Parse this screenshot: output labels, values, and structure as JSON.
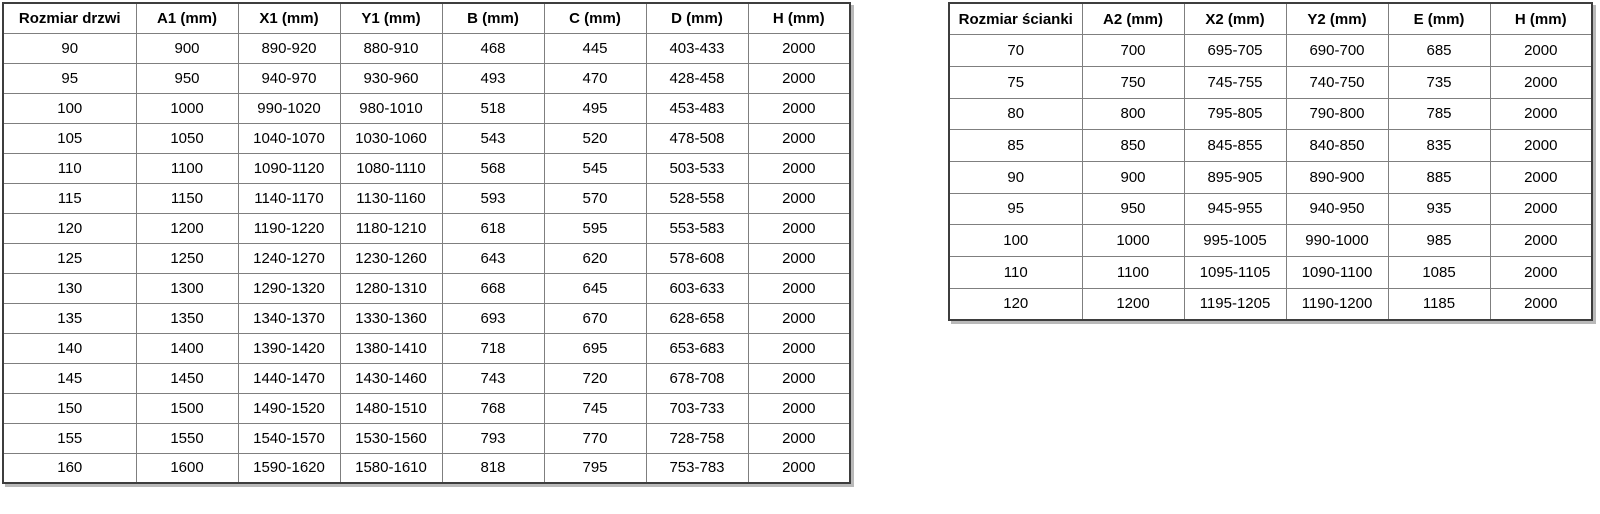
{
  "colors": {
    "background": "#ffffff",
    "border_outer": "#3d3d3d",
    "border_inner": "#7f7f7f",
    "text": "#000000",
    "shadow": "#b9b9b9"
  },
  "tables": {
    "door": {
      "title": "Rozmiar drzwi",
      "columns": [
        "Rozmiar drzwi",
        "A1 (mm)",
        "X1 (mm)",
        "Y1 (mm)",
        "B (mm)",
        "C (mm)",
        "D (mm)",
        "H (mm)"
      ],
      "rows": [
        [
          "90",
          "900",
          "890-920",
          "880-910",
          "468",
          "445",
          "403-433",
          "2000"
        ],
        [
          "95",
          "950",
          "940-970",
          "930-960",
          "493",
          "470",
          "428-458",
          "2000"
        ],
        [
          "100",
          "1000",
          "990-1020",
          "980-1010",
          "518",
          "495",
          "453-483",
          "2000"
        ],
        [
          "105",
          "1050",
          "1040-1070",
          "1030-1060",
          "543",
          "520",
          "478-508",
          "2000"
        ],
        [
          "110",
          "1100",
          "1090-1120",
          "1080-1110",
          "568",
          "545",
          "503-533",
          "2000"
        ],
        [
          "115",
          "1150",
          "1140-1170",
          "1130-1160",
          "593",
          "570",
          "528-558",
          "2000"
        ],
        [
          "120",
          "1200",
          "1190-1220",
          "1180-1210",
          "618",
          "595",
          "553-583",
          "2000"
        ],
        [
          "125",
          "1250",
          "1240-1270",
          "1230-1260",
          "643",
          "620",
          "578-608",
          "2000"
        ],
        [
          "130",
          "1300",
          "1290-1320",
          "1280-1310",
          "668",
          "645",
          "603-633",
          "2000"
        ],
        [
          "135",
          "1350",
          "1340-1370",
          "1330-1360",
          "693",
          "670",
          "628-658",
          "2000"
        ],
        [
          "140",
          "1400",
          "1390-1420",
          "1380-1410",
          "718",
          "695",
          "653-683",
          "2000"
        ],
        [
          "145",
          "1450",
          "1440-1470",
          "1430-1460",
          "743",
          "720",
          "678-708",
          "2000"
        ],
        [
          "150",
          "1500",
          "1490-1520",
          "1480-1510",
          "768",
          "745",
          "703-733",
          "2000"
        ],
        [
          "155",
          "1550",
          "1540-1570",
          "1530-1560",
          "793",
          "770",
          "728-758",
          "2000"
        ],
        [
          "160",
          "1600",
          "1590-1620",
          "1580-1610",
          "818",
          "795",
          "753-783",
          "2000"
        ]
      ]
    },
    "wall": {
      "title": "Rozmiar ścianki",
      "columns": [
        "Rozmiar ścianki",
        "A2 (mm)",
        "X2 (mm)",
        "Y2 (mm)",
        "E (mm)",
        "H (mm)"
      ],
      "rows": [
        [
          "70",
          "700",
          "695-705",
          "690-700",
          "685",
          "2000"
        ],
        [
          "75",
          "750",
          "745-755",
          "740-750",
          "735",
          "2000"
        ],
        [
          "80",
          "800",
          "795-805",
          "790-800",
          "785",
          "2000"
        ],
        [
          "85",
          "850",
          "845-855",
          "840-850",
          "835",
          "2000"
        ],
        [
          "90",
          "900",
          "895-905",
          "890-900",
          "885",
          "2000"
        ],
        [
          "95",
          "950",
          "945-955",
          "940-950",
          "935",
          "2000"
        ],
        [
          "100",
          "1000",
          "995-1005",
          "990-1000",
          "985",
          "2000"
        ],
        [
          "110",
          "1100",
          "1095-1105",
          "1090-1100",
          "1085",
          "2000"
        ],
        [
          "120",
          "1200",
          "1195-1205",
          "1190-1200",
          "1185",
          "2000"
        ]
      ]
    }
  }
}
